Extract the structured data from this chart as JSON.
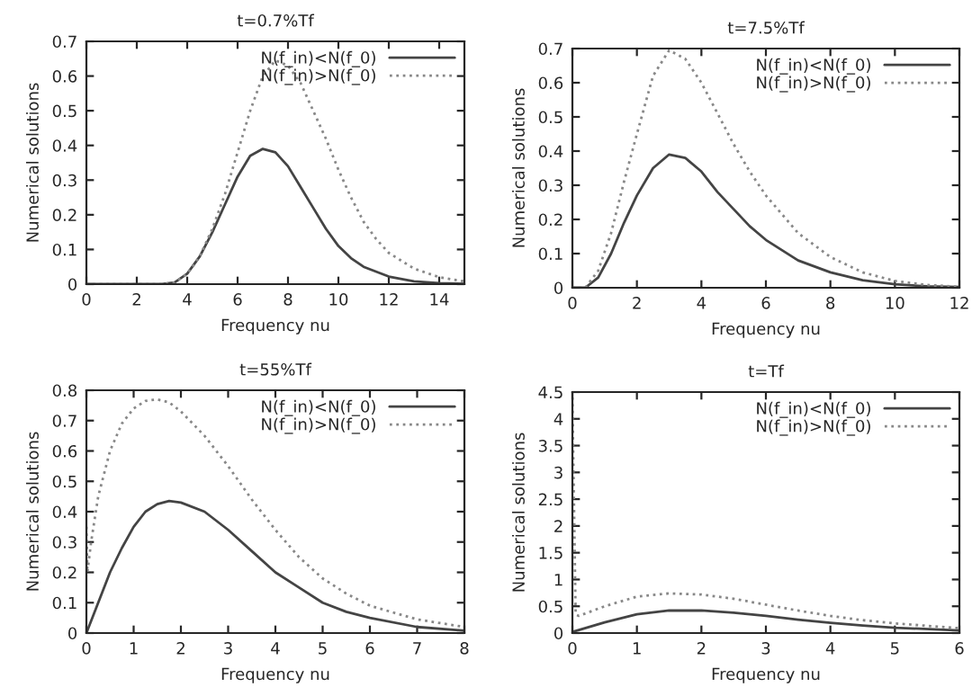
{
  "chart_data": [
    {
      "type": "line",
      "title": "t=0.7%Tf",
      "xlabel": "Frequency nu",
      "ylabel": "Numerical solutions",
      "xlim": [
        0,
        15
      ],
      "xticks": [
        0,
        2,
        4,
        6,
        8,
        10,
        12,
        14
      ],
      "ylim": [
        0,
        0.7
      ],
      "yticks": [
        0,
        0.1,
        0.2,
        0.3,
        0.4,
        0.5,
        0.6,
        0.7
      ],
      "grid": false,
      "legend": "top right",
      "series": [
        {
          "name": "N(f_in)<N(f_0)",
          "color": "#444444",
          "line_style": "solid",
          "x": [
            0,
            3,
            3.5,
            4,
            4.5,
            5,
            5.5,
            6,
            6.5,
            7,
            7.5,
            8,
            8.5,
            9,
            9.5,
            10,
            10.5,
            11,
            12,
            13,
            14,
            15
          ],
          "values": [
            0,
            0,
            0.005,
            0.03,
            0.08,
            0.15,
            0.23,
            0.31,
            0.37,
            0.39,
            0.38,
            0.34,
            0.28,
            0.22,
            0.16,
            0.11,
            0.075,
            0.05,
            0.022,
            0.008,
            0.003,
            0.001
          ]
        },
        {
          "name": "N(f_in)>N(f_0)",
          "color": "#888888",
          "line_style": "dotted",
          "x": [
            0,
            3,
            3.5,
            4,
            4.5,
            5,
            5.5,
            6,
            6.5,
            7,
            7.5,
            8,
            8.5,
            9,
            9.5,
            10,
            10.5,
            11,
            11.5,
            12,
            13,
            14,
            15
          ],
          "values": [
            0,
            0,
            0.005,
            0.03,
            0.08,
            0.16,
            0.26,
            0.38,
            0.5,
            0.6,
            0.645,
            0.63,
            0.58,
            0.5,
            0.42,
            0.33,
            0.25,
            0.18,
            0.13,
            0.09,
            0.045,
            0.02,
            0.008
          ]
        }
      ]
    },
    {
      "type": "line",
      "title": "t=7.5%Tf",
      "xlabel": "Frequency nu",
      "ylabel": "Numerical solutions",
      "xlim": [
        0,
        12
      ],
      "xticks": [
        0,
        2,
        4,
        6,
        8,
        10,
        12
      ],
      "ylim": [
        0,
        0.7
      ],
      "yticks": [
        0,
        0.1,
        0.2,
        0.3,
        0.4,
        0.5,
        0.6,
        0.7
      ],
      "grid": false,
      "legend": "top right",
      "series": [
        {
          "name": "N(f_in)<N(f_0)",
          "color": "#444444",
          "line_style": "solid",
          "x": [
            0,
            0.4,
            0.8,
            1.2,
            1.6,
            2,
            2.5,
            3,
            3.5,
            4,
            4.5,
            5,
            5.5,
            6,
            7,
            8,
            9,
            10,
            11,
            12
          ],
          "values": [
            0,
            0,
            0.03,
            0.1,
            0.19,
            0.27,
            0.35,
            0.39,
            0.38,
            0.34,
            0.28,
            0.23,
            0.18,
            0.14,
            0.08,
            0.045,
            0.022,
            0.01,
            0.004,
            0.002
          ]
        },
        {
          "name": "N(f_in)>N(f_0)",
          "color": "#888888",
          "line_style": "dotted",
          "x": [
            0,
            0.4,
            0.8,
            1.2,
            1.6,
            2,
            2.5,
            3,
            3.5,
            4,
            4.5,
            5,
            5.5,
            6,
            7,
            8,
            9,
            10,
            11,
            12
          ],
          "values": [
            0,
            0,
            0.05,
            0.16,
            0.31,
            0.45,
            0.62,
            0.695,
            0.67,
            0.6,
            0.51,
            0.42,
            0.34,
            0.27,
            0.16,
            0.09,
            0.045,
            0.02,
            0.008,
            0.003
          ]
        }
      ]
    },
    {
      "type": "line",
      "title": "t=55%Tf",
      "xlabel": "Frequency nu",
      "ylabel": "Numerical solutions",
      "xlim": [
        0,
        8
      ],
      "xticks": [
        0,
        1,
        2,
        3,
        4,
        5,
        6,
        7,
        8
      ],
      "ylim": [
        0,
        0.8
      ],
      "yticks": [
        0,
        0.1,
        0.2,
        0.3,
        0.4,
        0.5,
        0.6,
        0.7,
        0.8
      ],
      "grid": false,
      "legend": "top right",
      "series": [
        {
          "name": "N(f_in)<N(f_0)",
          "color": "#444444",
          "line_style": "solid",
          "x": [
            0,
            0.25,
            0.5,
            0.75,
            1,
            1.25,
            1.5,
            1.75,
            2,
            2.5,
            3,
            3.5,
            4,
            4.5,
            5,
            5.5,
            6,
            7,
            8
          ],
          "values": [
            0,
            0.1,
            0.2,
            0.28,
            0.35,
            0.4,
            0.425,
            0.435,
            0.43,
            0.4,
            0.34,
            0.27,
            0.2,
            0.15,
            0.1,
            0.07,
            0.05,
            0.02,
            0.008
          ]
        },
        {
          "name": "N(f_in)>N(f_0)",
          "color": "#888888",
          "line_style": "dotted",
          "x": [
            0,
            0.02,
            0.1,
            0.25,
            0.5,
            0.75,
            1,
            1.25,
            1.5,
            1.75,
            2,
            2.5,
            3,
            3.5,
            4,
            4.5,
            5,
            5.5,
            6,
            7,
            8
          ],
          "values": [
            0.35,
            0.2,
            0.3,
            0.45,
            0.6,
            0.69,
            0.74,
            0.765,
            0.77,
            0.76,
            0.73,
            0.65,
            0.55,
            0.44,
            0.34,
            0.25,
            0.18,
            0.13,
            0.09,
            0.045,
            0.02
          ]
        }
      ]
    },
    {
      "type": "line",
      "title": "t=Tf",
      "xlabel": "Frequency nu",
      "ylabel": "Numerical solutions",
      "xlim": [
        0,
        6
      ],
      "xticks": [
        0,
        1,
        2,
        3,
        4,
        5,
        6
      ],
      "ylim": [
        0,
        4.5
      ],
      "yticks": [
        0,
        0.5,
        1,
        1.5,
        2,
        2.5,
        3,
        3.5,
        4,
        4.5
      ],
      "grid": false,
      "legend": "top right",
      "series": [
        {
          "name": "N(f_in)<N(f_0)",
          "color": "#444444",
          "line_style": "solid",
          "x": [
            0,
            0.5,
            1,
            1.5,
            2,
            2.5,
            3,
            3.5,
            4,
            4.5,
            5,
            6
          ],
          "values": [
            0.02,
            0.2,
            0.35,
            0.42,
            0.42,
            0.38,
            0.32,
            0.25,
            0.19,
            0.14,
            0.1,
            0.05
          ]
        },
        {
          "name": "N(f_in)>N(f_0)",
          "color": "#888888",
          "line_style": "dotted",
          "x": [
            0,
            0.05,
            0.1,
            0.5,
            1,
            1.5,
            2,
            2.5,
            3,
            3.5,
            4,
            4.5,
            5,
            6
          ],
          "values": [
            4.4,
            0.35,
            0.32,
            0.5,
            0.68,
            0.74,
            0.72,
            0.64,
            0.53,
            0.42,
            0.32,
            0.24,
            0.18,
            0.09
          ]
        }
      ]
    }
  ]
}
